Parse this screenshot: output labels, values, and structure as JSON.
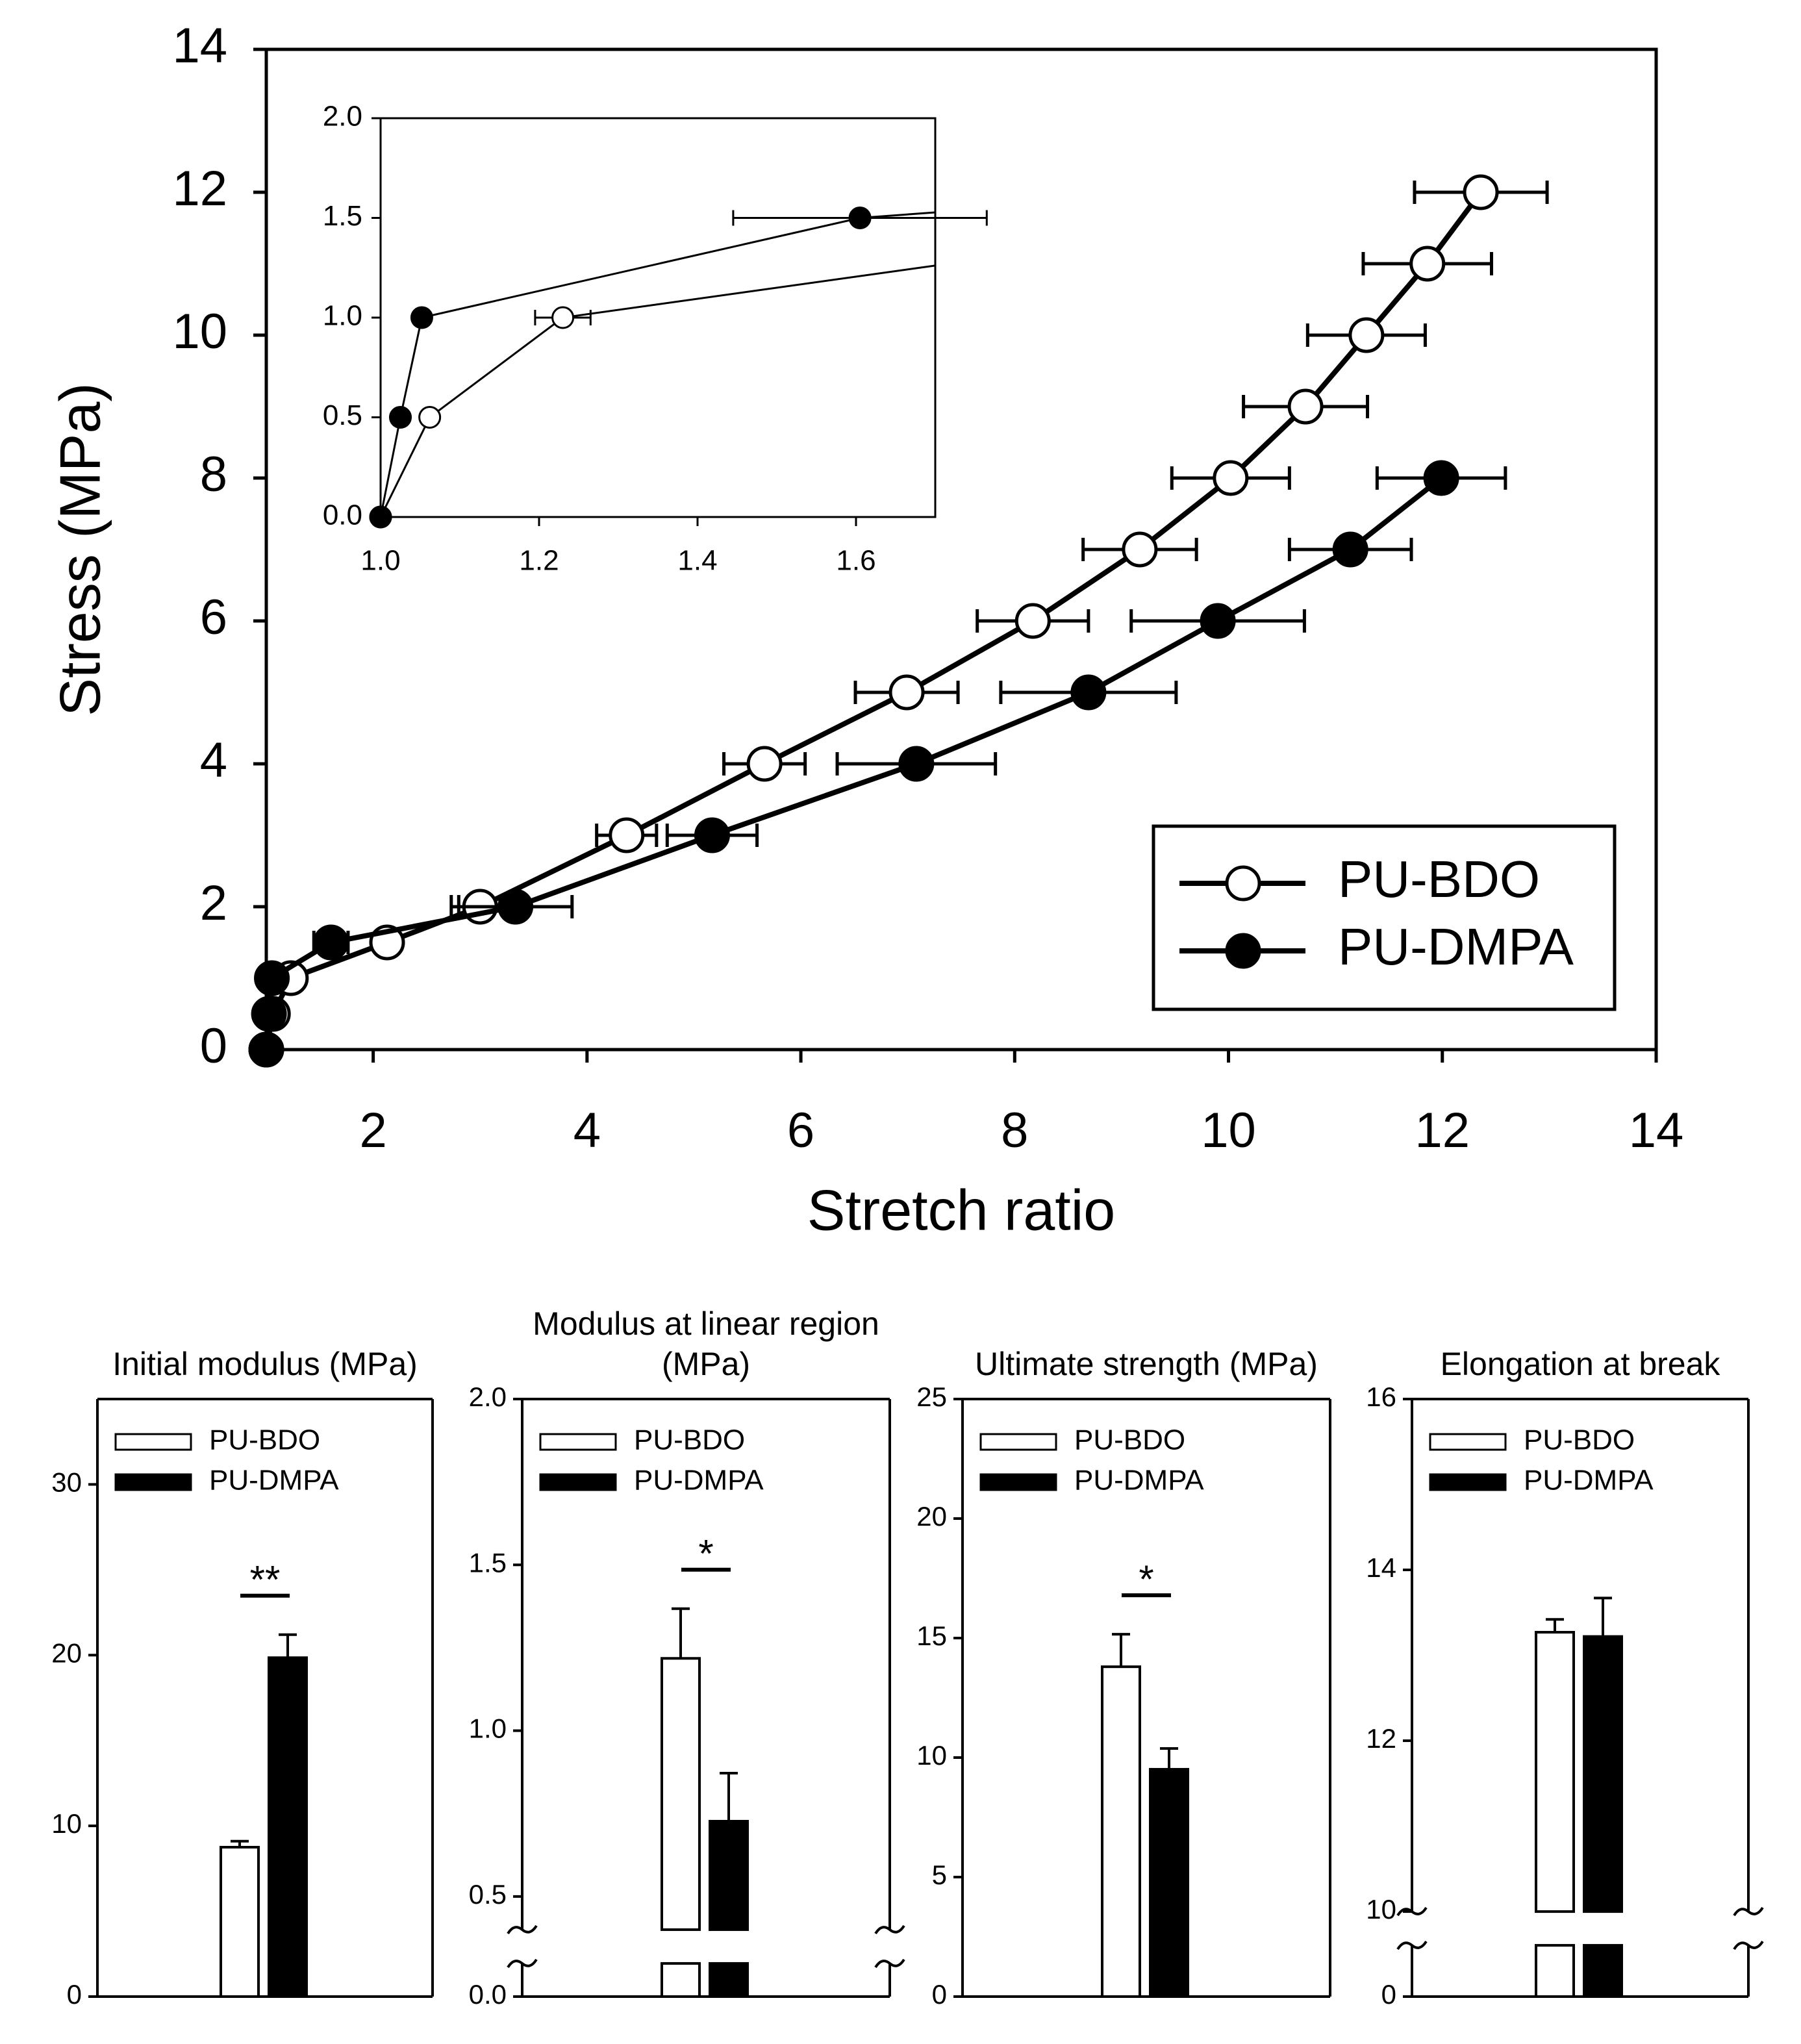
{
  "chart_data": [
    {
      "type": "line",
      "xlabel": "Stretch ratio",
      "ylabel": "Stress (MPa)",
      "xlim": [
        1,
        14
      ],
      "ylim": [
        0,
        14
      ],
      "xticks": [
        2,
        4,
        6,
        8,
        10,
        12,
        14
      ],
      "yticks": [
        0,
        2,
        4,
        6,
        8,
        10,
        12,
        14
      ],
      "legend": "lower right",
      "series": [
        {
          "name": "PU-BDO",
          "color": "#000000",
          "marker_fill": "#ffffff",
          "x": [
            1.0,
            1.062,
            1.23,
            2.13,
            3.0,
            4.37,
            5.66,
            6.99,
            8.17,
            9.17,
            10.02,
            10.72,
            11.29,
            11.86,
            12.36
          ],
          "values": [
            0,
            0.5,
            1,
            1.5,
            2,
            3,
            4,
            5,
            6,
            7,
            8,
            9,
            10,
            11,
            12
          ],
          "x_err": [
            0,
            0,
            0.035,
            0,
            0.27,
            0.28,
            0.38,
            0.48,
            0.52,
            0.53,
            0.55,
            0.58,
            0.55,
            0.6,
            0.62
          ]
        },
        {
          "name": "PU-DMPA",
          "color": "#000000",
          "marker_fill": "#000000",
          "x": [
            1.0,
            1.025,
            1.052,
            1.605,
            3.33,
            5.17,
            7.08,
            8.69,
            9.9,
            11.14,
            11.99
          ],
          "values": [
            0,
            0.5,
            1,
            1.5,
            2,
            3,
            4,
            5,
            6,
            7,
            8
          ],
          "x_err": [
            0,
            0,
            0,
            0.16,
            0.53,
            0.42,
            0.74,
            0.82,
            0.81,
            0.57,
            0.6
          ]
        }
      ],
      "inset": {
        "xlim": [
          1.0,
          1.7
        ],
        "ylim": [
          0,
          2
        ],
        "xticks": [
          {
            "value": 1,
            "label": "1.0"
          },
          1.2,
          1.4,
          1.6
        ],
        "yticks": [
          {
            "value": 0,
            "label": "0.0"
          },
          0.5,
          {
            "value": 1,
            "label": "1.0"
          },
          1.5,
          {
            "value": 2,
            "label": "2.0"
          }
        ]
      }
    },
    {
      "type": "bar",
      "title": [
        "Initial modulus (MPa)"
      ],
      "ylim": [
        0,
        35
      ],
      "yticks": [
        0,
        10,
        20,
        30
      ],
      "significance": "**",
      "legend": "upper left",
      "series": [
        {
          "name": "PU-BDO",
          "color": "#ffffff",
          "values": [
            8.75
          ],
          "error": [
            0.35
          ]
        },
        {
          "name": "PU-DMPA",
          "color": "#000000",
          "values": [
            19.85
          ],
          "error": [
            1.35
          ]
        }
      ]
    },
    {
      "type": "bar",
      "title": [
        "Modulus at linear region",
        "(MPa)"
      ],
      "ylim": [
        0,
        2
      ],
      "ybreak": [
        0.1,
        0.4
      ],
      "yticks": [
        {
          "value": 0,
          "label": "0.0"
        },
        0.5,
        {
          "value": 1,
          "label": "1.0"
        },
        1.5,
        {
          "value": 2,
          "label": "2.0"
        }
      ],
      "significance": "*",
      "legend": "upper left",
      "series": [
        {
          "name": "PU-BDO",
          "color": "#ffffff",
          "values": [
            1.218
          ],
          "error": [
            0.15
          ]
        },
        {
          "name": "PU-DMPA",
          "color": "#000000",
          "values": [
            0.727
          ],
          "error": [
            0.145
          ]
        }
      ]
    },
    {
      "type": "bar",
      "title": [
        "Ultimate strength (MPa)"
      ],
      "ylim": [
        0,
        25
      ],
      "yticks": [
        0,
        5,
        10,
        15,
        20,
        25
      ],
      "significance": "*",
      "legend": "upper left",
      "series": [
        {
          "name": "PU-BDO",
          "color": "#ffffff",
          "values": [
            13.8
          ],
          "error": [
            1.36
          ]
        },
        {
          "name": "PU-DMPA",
          "color": "#000000",
          "values": [
            9.51
          ],
          "error": [
            0.87
          ]
        }
      ]
    },
    {
      "type": "bar",
      "title": [
        "Elongation at break"
      ],
      "ylim": [
        0,
        16
      ],
      "ybreak": [
        0.6,
        10
      ],
      "yticks": [
        0,
        10,
        12,
        14,
        16
      ],
      "legend": "upper left",
      "series": [
        {
          "name": "PU-BDO",
          "color": "#ffffff",
          "values": [
            13.27
          ],
          "error": [
            0.15
          ]
        },
        {
          "name": "PU-DMPA",
          "color": "#000000",
          "values": [
            13.22
          ],
          "error": [
            0.45
          ]
        }
      ]
    }
  ]
}
